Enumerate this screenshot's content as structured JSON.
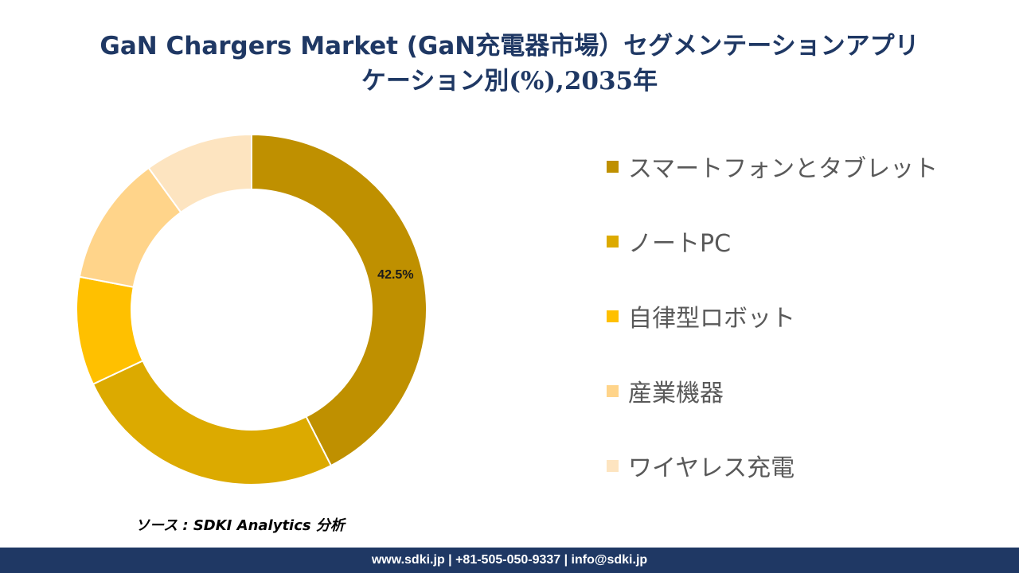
{
  "title": {
    "line1": "GaN Chargers Market (GaN充電器市場）セグメンテーションアプリ",
    "line2": "ケーション別(%),2035年"
  },
  "chart_data": {
    "type": "pie",
    "donut": true,
    "categories": [
      "スマートフォンとタブレット",
      "ノートPC",
      "自律型ロボット",
      "産業機器",
      "ワイヤレス充電"
    ],
    "values": [
      42.5,
      25.5,
      10.0,
      12.0,
      10.0
    ],
    "data_labels": [
      "42.5%",
      "",
      "",
      "",
      ""
    ],
    "colors": [
      "#bf9000",
      "#dcaa00",
      "#ffc000",
      "#ffd48a",
      "#fde4c0"
    ],
    "legend_position": "right"
  },
  "legend": {
    "items": [
      {
        "label": "スマートフォンとタブレット",
        "color": "#bf9000"
      },
      {
        "label": "ノートPC",
        "color": "#dcaa00"
      },
      {
        "label": "自律型ロボット",
        "color": "#ffc000"
      },
      {
        "label": "産業機器",
        "color": "#ffd48a"
      },
      {
        "label": "ワイヤレス充電",
        "color": "#fde4c0"
      }
    ]
  },
  "source": "ソース : SDKI Analytics 分析",
  "footer": "www.sdki.jp | +81-505-050-9337 | info@sdki.jp"
}
